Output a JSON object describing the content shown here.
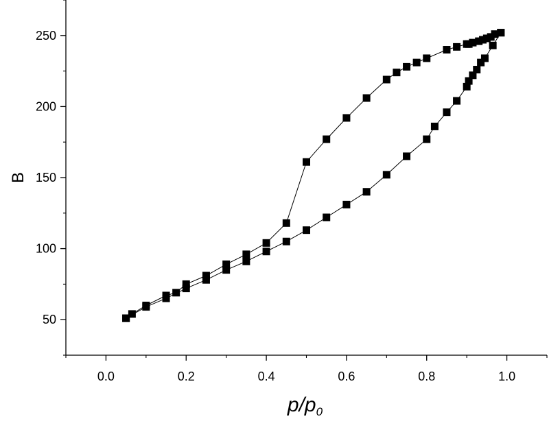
{
  "chart_data": {
    "type": "scatter",
    "xlabel": {
      "main": "p/p",
      "sub": "0"
    },
    "ylabel": "B",
    "xlim": [
      -0.1,
      1.1
    ],
    "ylim": [
      25,
      275
    ],
    "xticks": [
      0.0,
      0.2,
      0.4,
      0.6,
      0.8,
      1.0
    ],
    "xtick_labels": [
      "0.0",
      "0.2",
      "0.4",
      "0.6",
      "0.8",
      "1.0"
    ],
    "yticks": [
      50,
      100,
      150,
      200,
      250
    ],
    "ytick_labels": [
      "50",
      "100",
      "150",
      "200",
      "250"
    ],
    "grid": false,
    "marker": "filled-square",
    "line": "thin connecting line",
    "color": "#000000",
    "series": [
      {
        "x": [
          0.05,
          0.1,
          0.15,
          0.2,
          0.25,
          0.3,
          0.35,
          0.4,
          0.45,
          0.5,
          0.55,
          0.6,
          0.65,
          0.7,
          0.75,
          0.8,
          0.82,
          0.85,
          0.875,
          0.9,
          0.905,
          0.915,
          0.925,
          0.935,
          0.945,
          0.965,
          0.985
        ],
        "y": [
          51,
          59,
          65,
          72,
          78,
          85,
          91,
          98,
          105,
          113,
          122,
          131,
          140,
          152,
          165,
          177,
          186,
          196,
          204,
          214,
          218,
          222,
          226,
          231,
          234,
          243,
          252
        ]
      },
      {
        "x": [
          0.985,
          0.97,
          0.96,
          0.95,
          0.94,
          0.93,
          0.915,
          0.905,
          0.9,
          0.875,
          0.85,
          0.8,
          0.775,
          0.75,
          0.725,
          0.7,
          0.65,
          0.6,
          0.55,
          0.5,
          0.45,
          0.4,
          0.35,
          0.3,
          0.25,
          0.2,
          0.175,
          0.15,
          0.1,
          0.065,
          0.05
        ],
        "y": [
          252,
          251,
          249,
          248,
          247,
          246,
          245,
          244,
          244,
          242,
          240,
          234,
          231,
          228,
          224,
          219,
          206,
          192,
          177,
          161,
          118,
          104,
          96,
          89,
          81,
          75,
          69,
          67,
          60,
          54,
          51
        ]
      }
    ]
  }
}
